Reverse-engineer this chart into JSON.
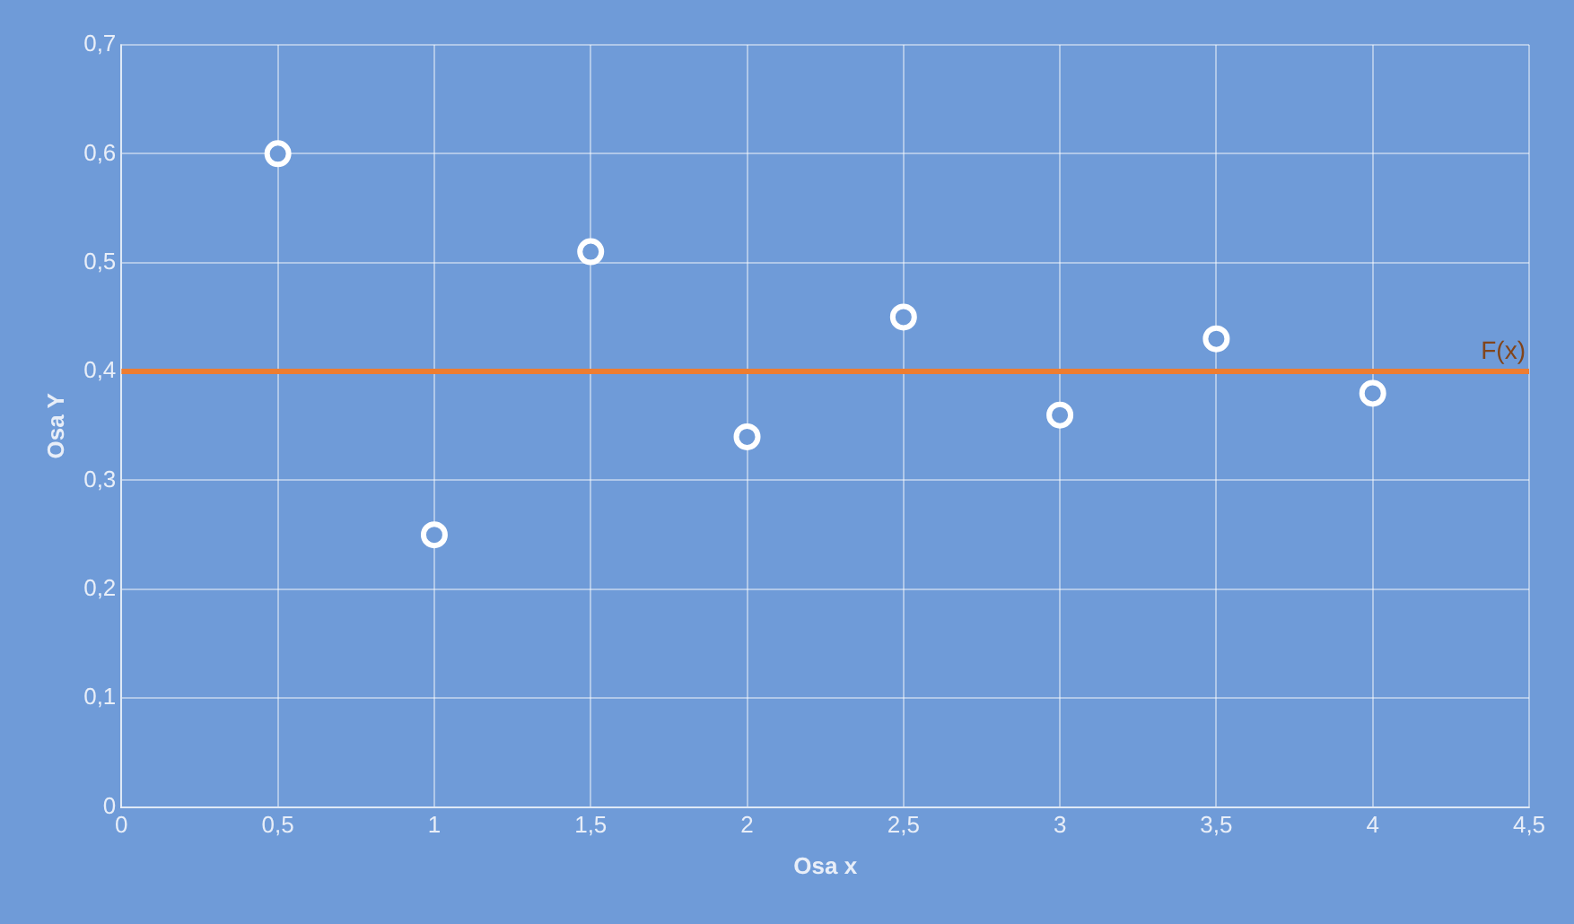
{
  "chart_data": {
    "type": "scatter",
    "xlabel": "Osa x",
    "ylabel": "Osa Y",
    "x": [
      0.5,
      1,
      1.5,
      2,
      2.5,
      3,
      3.5,
      4
    ],
    "values": [
      0.6,
      0.25,
      0.51,
      0.34,
      0.45,
      0.36,
      0.43,
      0.38
    ],
    "color": "#ffffff",
    "marker": "circle",
    "grid": true,
    "xlim": [
      0,
      4.5
    ],
    "xticks": [
      0,
      {
        "value": 0.5,
        "label": "0,5"
      },
      1,
      {
        "value": 1.5,
        "label": "1,5"
      },
      2,
      {
        "value": 2.5,
        "label": "2,5"
      },
      3,
      {
        "value": 3.5,
        "label": "3,5"
      },
      4,
      {
        "value": 4.5,
        "label": "4,5"
      }
    ],
    "ylim": [
      0,
      0.7
    ],
    "yticks": [
      0,
      {
        "value": 0.1,
        "label": "0,1"
      },
      {
        "value": 0.2,
        "label": "0,2"
      },
      {
        "value": 0.3,
        "label": "0,3"
      },
      {
        "value": 0.4,
        "label": "0,4"
      },
      {
        "value": 0.5,
        "label": "0,5"
      },
      {
        "value": 0.6,
        "label": "0,6"
      },
      {
        "value": 0.7,
        "label": "0,7"
      }
    ],
    "ref_lines": [
      {
        "axis": "y",
        "value": 0.4,
        "label": "F(x)",
        "color": "#ed7d31"
      }
    ]
  }
}
